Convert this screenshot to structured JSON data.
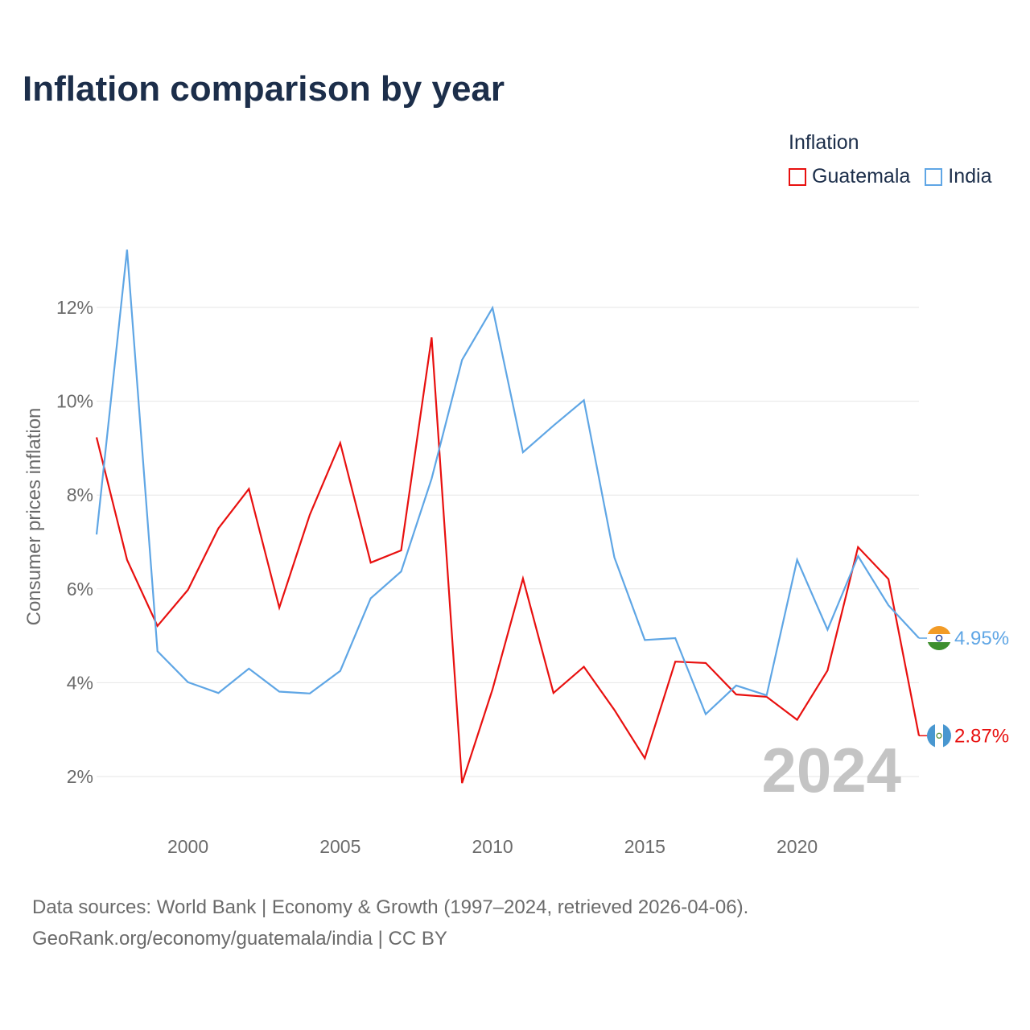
{
  "title": "Inflation comparison by year",
  "legend": {
    "title": "Inflation",
    "items": [
      {
        "label": "Guatemala",
        "color": "#e8100f"
      },
      {
        "label": "India",
        "color": "#5fa6e5"
      }
    ]
  },
  "source": {
    "line1": "Data sources: World Bank | Economy & Growth (1997–2024, retrieved 2026-04-06).",
    "line2": "GeoRank.org/economy/guatemala/india | CC BY"
  },
  "chart_data": {
    "type": "line",
    "title": "Inflation comparison by year",
    "ylabel": "Consumer prices inflation",
    "xlabel": "",
    "year_label": "2024",
    "x": [
      1997,
      1998,
      1999,
      2000,
      2001,
      2002,
      2003,
      2004,
      2005,
      2006,
      2007,
      2008,
      2009,
      2010,
      2011,
      2012,
      2013,
      2014,
      2015,
      2016,
      2017,
      2018,
      2019,
      2020,
      2021,
      2022,
      2023,
      2024
    ],
    "xlim": [
      1997,
      2024
    ],
    "ylim": [
      1.0,
      14.0
    ],
    "xticks": [
      {
        "value": 2000,
        "label": "2000"
      },
      {
        "value": 2005,
        "label": "2005"
      },
      {
        "value": 2010,
        "label": "2010"
      },
      {
        "value": 2015,
        "label": "2015"
      },
      {
        "value": 2020,
        "label": "2020"
      }
    ],
    "yticks": [
      {
        "value": 2,
        "label": "2%"
      },
      {
        "value": 4,
        "label": "4%"
      },
      {
        "value": 6,
        "label": "6%"
      },
      {
        "value": 8,
        "label": "8%"
      },
      {
        "value": 10,
        "label": "10%"
      },
      {
        "value": 12,
        "label": "12%"
      }
    ],
    "grid": true,
    "legend_position": "top-right",
    "series": [
      {
        "name": "Guatemala",
        "color": "#e8100f",
        "values": [
          9.23,
          6.62,
          5.21,
          5.98,
          7.29,
          8.13,
          5.6,
          7.58,
          9.11,
          6.56,
          6.82,
          11.36,
          1.86,
          3.86,
          6.22,
          3.78,
          4.34,
          3.42,
          2.39,
          4.45,
          4.42,
          3.75,
          3.7,
          3.21,
          4.26,
          6.89,
          6.21,
          2.87
        ],
        "end_label": "2.87%",
        "flag": "guatemala-flag-icon"
      },
      {
        "name": "India",
        "color": "#5fa6e5",
        "values": [
          7.16,
          13.23,
          4.67,
          4.01,
          3.78,
          4.3,
          3.81,
          3.77,
          4.25,
          5.8,
          6.37,
          8.35,
          10.88,
          11.99,
          8.91,
          9.48,
          10.02,
          6.67,
          4.91,
          4.95,
          3.33,
          3.94,
          3.73,
          6.62,
          5.13,
          6.7,
          5.65,
          4.95
        ],
        "end_label": "4.95%",
        "flag": "india-flag-icon"
      }
    ]
  }
}
